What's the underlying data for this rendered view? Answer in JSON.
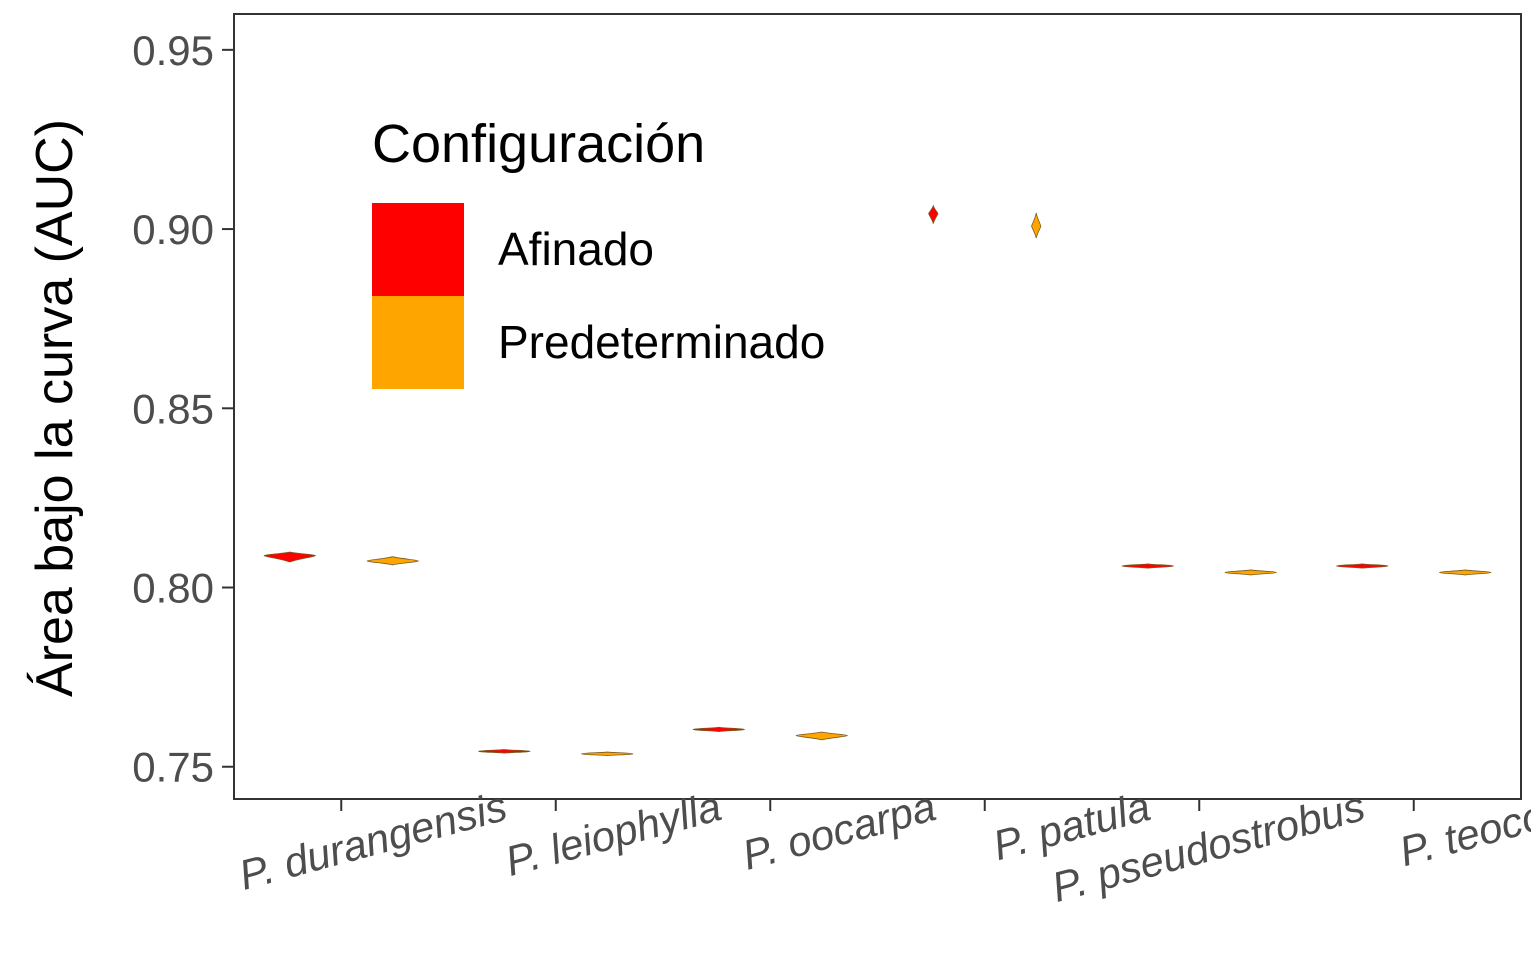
{
  "chart_data": {
    "type": "violin",
    "title": "",
    "xlabel": "",
    "ylabel": "Área bajo la curva (AUC)",
    "ylim": [
      0.741,
      0.96
    ],
    "yticks": [
      0.75,
      0.8,
      0.85,
      0.9,
      0.95
    ],
    "ytick_labels": [
      "0.75",
      "0.80",
      "0.85",
      "0.90",
      "0.95"
    ],
    "categories": [
      "P. durangensis",
      "P. leiophylla",
      "P. oocarpa",
      "P. patula",
      "P. pseudostrobus",
      "P. teocote"
    ],
    "legend": {
      "title": "Configuración",
      "position": "top-left",
      "entries": [
        {
          "label": "Afinado",
          "color": "#ff0000"
        },
        {
          "label": "Predeterminado",
          "color": "#ffa500"
        }
      ]
    },
    "series": [
      {
        "name": "Afinado",
        "color": "#ff0000",
        "values": [
          0.8089,
          0.7543,
          0.7604,
          0.9043,
          0.806,
          0.806
        ],
        "ranges": [
          [
            0.8071,
            0.8099
          ],
          [
            0.7538,
            0.7548
          ],
          [
            0.7598,
            0.761
          ],
          [
            0.9015,
            0.9065
          ],
          [
            0.8054,
            0.8066
          ],
          [
            0.8054,
            0.8066
          ]
        ]
      },
      {
        "name": "Predeterminado",
        "color": "#ffa500",
        "values": [
          0.8074,
          0.7536,
          0.7587,
          0.9008,
          0.8042,
          0.8042
        ],
        "ranges": [
          [
            0.8063,
            0.8086
          ],
          [
            0.7531,
            0.7541
          ],
          [
            0.7575,
            0.7597
          ],
          [
            0.8975,
            0.9045
          ],
          [
            0.8035,
            0.8049
          ],
          [
            0.8035,
            0.8049
          ]
        ]
      }
    ]
  }
}
